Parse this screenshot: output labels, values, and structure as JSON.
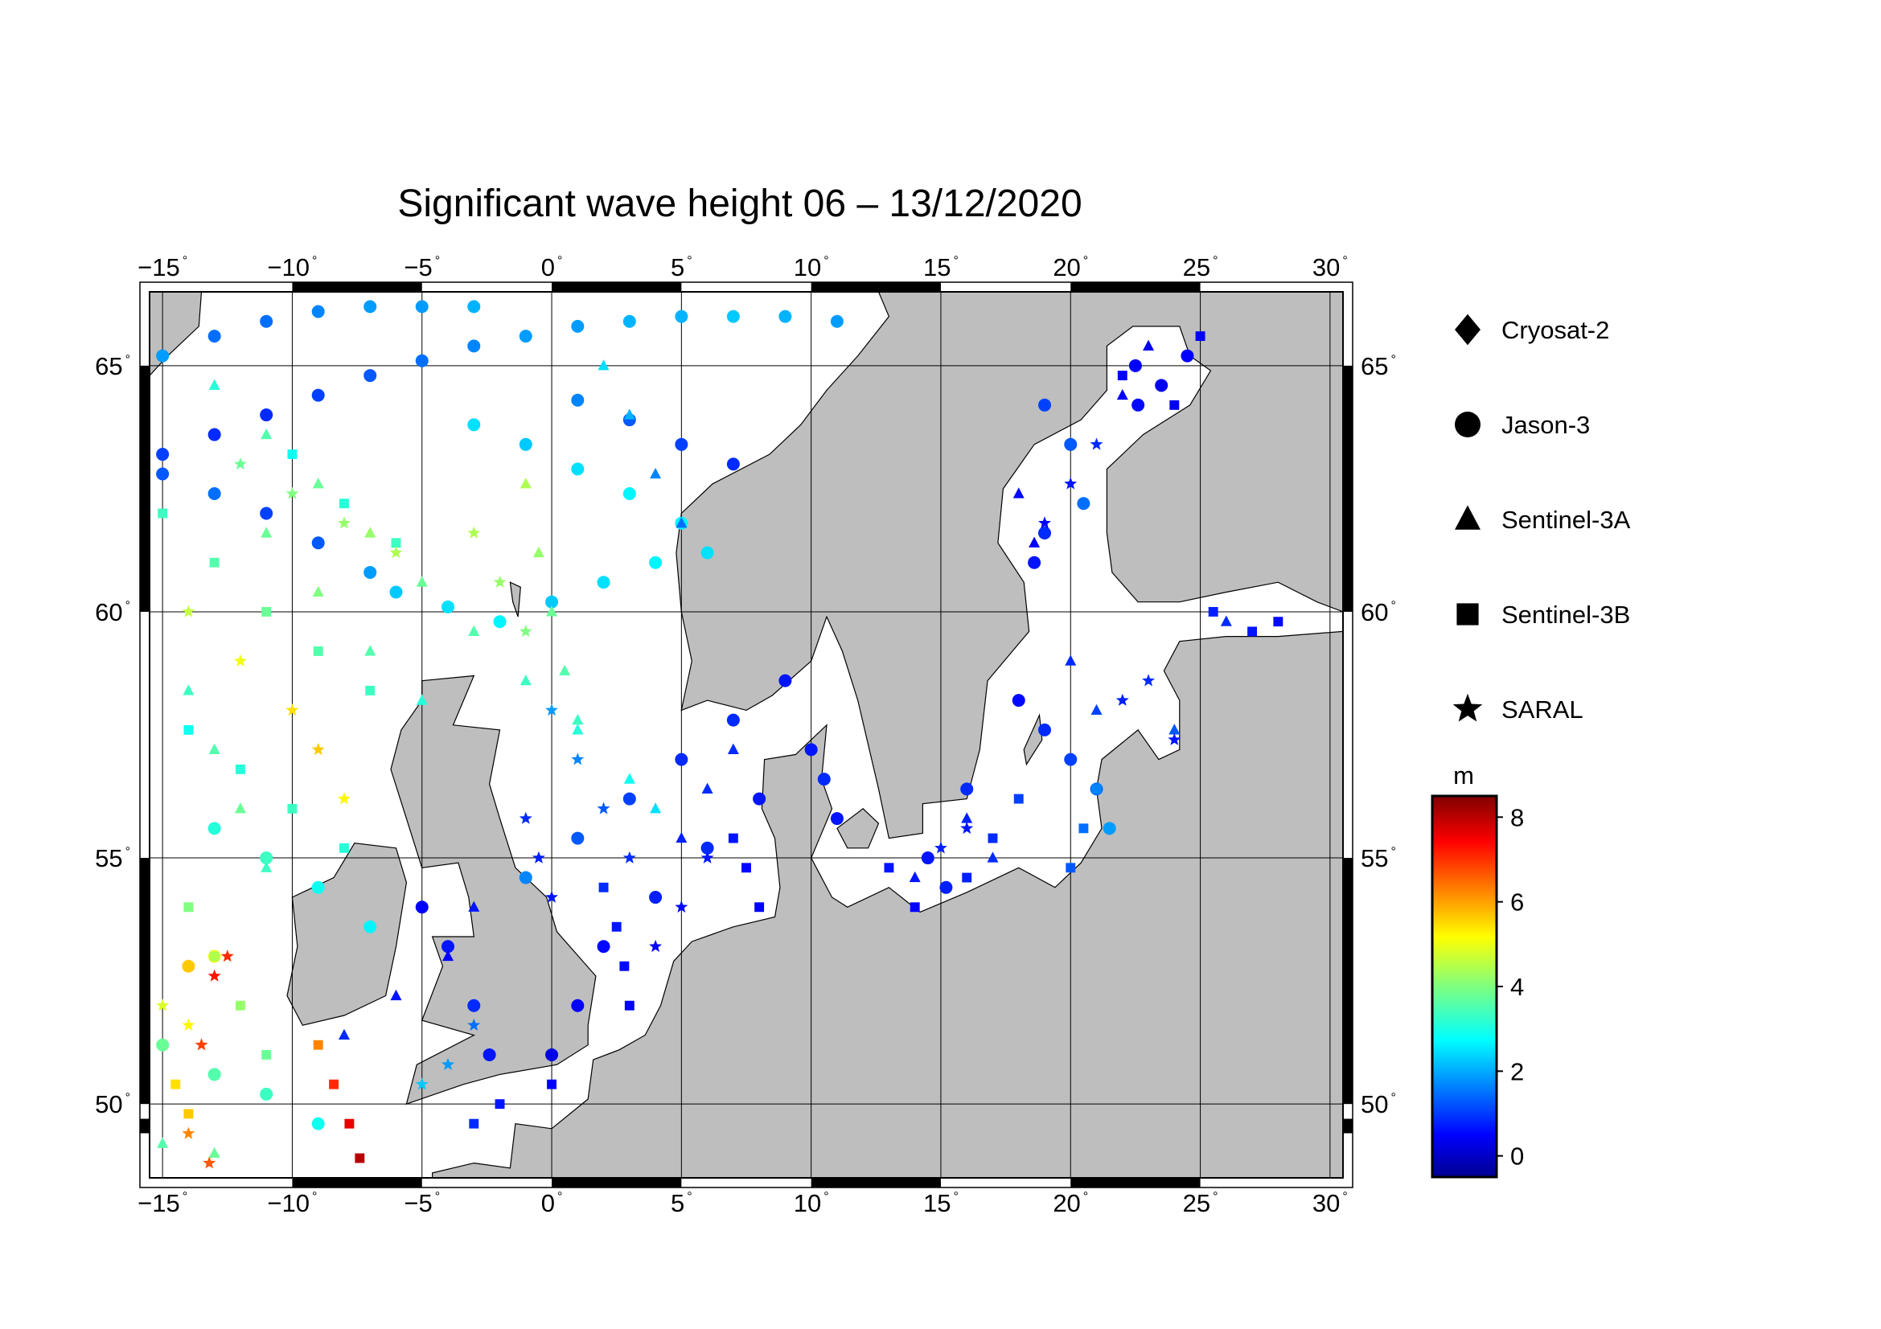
{
  "title": "Significant wave height 06 – 13/12/2020",
  "map": {
    "lon_range": [
      -15.5,
      30.5
    ],
    "lat_range": [
      48.5,
      66.5
    ],
    "lon_ticks": [
      "−15",
      "−10",
      "−5",
      "0",
      "5",
      "10",
      "15",
      "20",
      "25",
      "30"
    ],
    "lat_ticks": [
      "50",
      "55",
      "60",
      "65"
    ],
    "land_color": "#bebebe",
    "sea_color": "#ffffff",
    "gridlines": true
  },
  "legend": {
    "satellites": [
      {
        "name": "Cryosat-2",
        "marker": "diamond"
      },
      {
        "name": "Jason-3",
        "marker": "circle"
      },
      {
        "name": "Sentinel-3A",
        "marker": "triangle"
      },
      {
        "name": "Sentinel-3B",
        "marker": "square"
      },
      {
        "name": "SARAL",
        "marker": "star"
      }
    ]
  },
  "colorbar": {
    "unit": "m",
    "ticks": [
      "8",
      "6",
      "4",
      "2",
      "0"
    ],
    "range": [
      -0.5,
      8.5
    ],
    "colormap": "jet"
  },
  "chart_data": {
    "type": "scatter",
    "title": "Significant wave height 06 – 13/12/2020",
    "xlabel": "",
    "ylabel": "",
    "xlim": [
      -15.5,
      30.5
    ],
    "ylim": [
      48.5,
      66.5
    ],
    "colorbar_unit": "m",
    "colorbar_range": [
      -0.5,
      8.5
    ],
    "series": [
      {
        "name": "Jason-3",
        "marker": "circle",
        "points": [
          [
            -15,
            65.2,
            2.0
          ],
          [
            -13,
            65.6,
            1.6
          ],
          [
            -11,
            65.9,
            1.6
          ],
          [
            -9,
            66.1,
            1.8
          ],
          [
            -7,
            66.2,
            2.0
          ],
          [
            -5,
            66.2,
            2.0
          ],
          [
            -3,
            66.2,
            2.2
          ],
          [
            -15,
            63.2,
            1.2
          ],
          [
            -13,
            63.6,
            1.0
          ],
          [
            -11,
            64.0,
            1.0
          ],
          [
            -9,
            64.4,
            1.2
          ],
          [
            -7,
            64.8,
            1.4
          ],
          [
            -5,
            65.1,
            1.6
          ],
          [
            -3,
            65.4,
            1.8
          ],
          [
            -1,
            65.6,
            2.0
          ],
          [
            1,
            65.8,
            2.0
          ],
          [
            3,
            65.9,
            2.2
          ],
          [
            5,
            66.0,
            2.2
          ],
          [
            7,
            66.0,
            2.4
          ],
          [
            9,
            66.0,
            2.2
          ],
          [
            11,
            65.9,
            2.0
          ],
          [
            -15,
            62.8,
            1.4
          ],
          [
            -13,
            62.4,
            1.6
          ],
          [
            -11,
            62.0,
            1.2
          ],
          [
            -9,
            61.4,
            1.4
          ],
          [
            -7,
            60.8,
            2.0
          ],
          [
            -3,
            63.8,
            2.6
          ],
          [
            -1,
            63.4,
            2.4
          ],
          [
            1,
            62.9,
            2.6
          ],
          [
            3,
            62.4,
            2.8
          ],
          [
            5,
            61.8,
            2.8
          ],
          [
            6,
            61.2,
            2.6
          ],
          [
            1,
            64.3,
            1.8
          ],
          [
            3,
            63.9,
            1.4
          ],
          [
            5,
            63.4,
            1.2
          ],
          [
            7,
            63.0,
            1.0
          ],
          [
            0,
            60.2,
            2.4
          ],
          [
            2,
            60.6,
            2.6
          ],
          [
            4,
            61.0,
            2.8
          ],
          [
            -6,
            60.4,
            2.4
          ],
          [
            -4,
            60.1,
            2.6
          ],
          [
            -2,
            59.8,
            2.8
          ],
          [
            9,
            58.6,
            0.8
          ],
          [
            7,
            57.8,
            1.0
          ],
          [
            5,
            57.0,
            1.0
          ],
          [
            3,
            56.2,
            1.2
          ],
          [
            1,
            55.4,
            1.4
          ],
          [
            -1,
            54.6,
            1.8
          ],
          [
            10,
            57.2,
            0.8
          ],
          [
            8,
            56.2,
            0.8
          ],
          [
            6,
            55.2,
            1.0
          ],
          [
            4,
            54.2,
            0.9
          ],
          [
            2,
            53.2,
            0.7
          ],
          [
            1,
            52.0,
            0.6
          ],
          [
            0,
            51.0,
            0.4
          ],
          [
            10.5,
            56.6,
            1.0
          ],
          [
            11,
            55.8,
            0.8
          ],
          [
            -5,
            54.0,
            0.6
          ],
          [
            -4,
            53.2,
            0.8
          ],
          [
            -3,
            52.0,
            1.0
          ],
          [
            -2.4,
            51.0,
            0.8
          ],
          [
            19,
            64.2,
            1.2
          ],
          [
            20,
            63.4,
            1.4
          ],
          [
            20.5,
            62.2,
            1.6
          ],
          [
            19,
            61.6,
            1.0
          ],
          [
            18.6,
            61.0,
            0.8
          ],
          [
            22.5,
            65.0,
            0.6
          ],
          [
            23.5,
            64.6,
            0.5
          ],
          [
            24.5,
            65.2,
            0.6
          ],
          [
            22.6,
            64.2,
            0.7
          ],
          [
            18,
            58.2,
            0.7
          ],
          [
            19,
            57.6,
            1.0
          ],
          [
            20,
            57.0,
            1.2
          ],
          [
            21,
            56.4,
            1.6
          ],
          [
            21.5,
            55.6,
            2.0
          ],
          [
            16,
            56.4,
            1.0
          ],
          [
            14.5,
            55.0,
            0.8
          ],
          [
            15.2,
            54.4,
            0.9
          ],
          [
            -13,
            55.6,
            3.2
          ],
          [
            -11,
            55.0,
            3.4
          ],
          [
            -9,
            54.4,
            3.0
          ],
          [
            -7,
            53.6,
            2.8
          ],
          [
            -15,
            51.2,
            3.8
          ],
          [
            -13,
            50.6,
            3.6
          ],
          [
            -11,
            50.2,
            3.4
          ],
          [
            -9,
            49.6,
            3.0
          ],
          [
            -14,
            52.8,
            5.6
          ],
          [
            -13,
            53.0,
            5.0
          ]
        ]
      },
      {
        "name": "Sentinel-3A",
        "marker": "triangle",
        "points": [
          [
            -13,
            64.6,
            3.2
          ],
          [
            -11,
            63.6,
            3.6
          ],
          [
            -9,
            62.6,
            3.8
          ],
          [
            -7,
            61.6,
            4.2
          ],
          [
            -5,
            60.6,
            3.8
          ],
          [
            -3,
            59.6,
            3.6
          ],
          [
            -1,
            58.6,
            3.4
          ],
          [
            1,
            57.6,
            3.2
          ],
          [
            3,
            56.6,
            3.0
          ],
          [
            4,
            56.0,
            2.6
          ],
          [
            -11,
            61.6,
            3.8
          ],
          [
            -9,
            60.4,
            4.0
          ],
          [
            -7,
            59.2,
            3.6
          ],
          [
            -5,
            58.2,
            3.2
          ],
          [
            -1,
            62.6,
            4.4
          ],
          [
            -0.5,
            61.2,
            4.2
          ],
          [
            0,
            60.0,
            3.8
          ],
          [
            0.5,
            58.8,
            3.6
          ],
          [
            1,
            57.8,
            3.4
          ],
          [
            2,
            65.0,
            2.6
          ],
          [
            3,
            64.0,
            2.2
          ],
          [
            4,
            62.8,
            1.8
          ],
          [
            5,
            61.8,
            1.6
          ],
          [
            -14,
            58.4,
            3.4
          ],
          [
            -13,
            57.2,
            3.6
          ],
          [
            -12,
            56.0,
            3.8
          ],
          [
            -11,
            54.8,
            3.4
          ],
          [
            -8,
            51.4,
            1.0
          ],
          [
            -6,
            52.2,
            0.8
          ],
          [
            -4,
            53.0,
            0.6
          ],
          [
            -3,
            54.0,
            0.8
          ],
          [
            5,
            55.4,
            0.9
          ],
          [
            6,
            56.4,
            1.0
          ],
          [
            7,
            57.2,
            1.0
          ],
          [
            18,
            62.4,
            0.7
          ],
          [
            18.6,
            61.4,
            0.6
          ],
          [
            22,
            64.4,
            0.6
          ],
          [
            23,
            65.4,
            0.5
          ],
          [
            20,
            59.0,
            1.0
          ],
          [
            21,
            58.0,
            1.2
          ],
          [
            24,
            57.6,
            1.4
          ],
          [
            26,
            59.8,
            1.0
          ],
          [
            16,
            55.8,
            0.9
          ],
          [
            17,
            55.0,
            1.0
          ],
          [
            14,
            54.6,
            0.8
          ],
          [
            -15,
            49.2,
            3.6
          ],
          [
            -13,
            49.0,
            3.8
          ]
        ]
      },
      {
        "name": "Sentinel-3B",
        "marker": "square",
        "points": [
          [
            -15,
            62.0,
            3.4
          ],
          [
            -13,
            61.0,
            3.6
          ],
          [
            -11,
            60.0,
            3.8
          ],
          [
            -9,
            59.2,
            3.6
          ],
          [
            -7,
            58.4,
            3.4
          ],
          [
            -10,
            63.2,
            3.0
          ],
          [
            -8,
            62.2,
            3.2
          ],
          [
            -6,
            61.4,
            3.4
          ],
          [
            -14,
            57.6,
            3.0
          ],
          [
            -12,
            56.8,
            3.2
          ],
          [
            -10,
            56.0,
            3.4
          ],
          [
            -8,
            55.2,
            3.2
          ],
          [
            -14,
            54.0,
            4.0
          ],
          [
            -13,
            53.0,
            4.4
          ],
          [
            -12,
            52.0,
            4.2
          ],
          [
            -11,
            51.0,
            3.8
          ],
          [
            -14.5,
            50.4,
            5.4
          ],
          [
            -14,
            49.8,
            5.6
          ],
          [
            -9,
            51.2,
            6.2
          ],
          [
            -8.4,
            50.4,
            7.0
          ],
          [
            -7.8,
            49.6,
            7.6
          ],
          [
            -7.4,
            48.9,
            8.0
          ],
          [
            3,
            52.0,
            0.6
          ],
          [
            2.8,
            52.8,
            0.7
          ],
          [
            2.5,
            53.6,
            0.8
          ],
          [
            2,
            54.4,
            1.0
          ],
          [
            7,
            55.4,
            0.8
          ],
          [
            7.5,
            54.8,
            0.7
          ],
          [
            8,
            54.0,
            0.6
          ],
          [
            13,
            54.8,
            0.8
          ],
          [
            14,
            54.0,
            0.6
          ],
          [
            16,
            54.6,
            0.9
          ],
          [
            17,
            55.4,
            1.0
          ],
          [
            18,
            56.2,
            1.2
          ],
          [
            20,
            54.8,
            1.4
          ],
          [
            20.5,
            55.6,
            1.6
          ],
          [
            21,
            56.4,
            1.8
          ],
          [
            27,
            59.6,
            0.8
          ],
          [
            28,
            59.8,
            0.7
          ],
          [
            25.5,
            60.0,
            0.9
          ],
          [
            22,
            64.8,
            0.6
          ],
          [
            24,
            64.2,
            0.5
          ],
          [
            25,
            65.6,
            0.6
          ],
          [
            -3,
            49.6,
            1.0
          ],
          [
            -2,
            50.0,
            0.8
          ],
          [
            0,
            50.4,
            0.6
          ]
        ]
      },
      {
        "name": "SARAL",
        "marker": "star",
        "points": [
          [
            -12,
            63.0,
            3.8
          ],
          [
            -10,
            62.4,
            4.0
          ],
          [
            -8,
            61.8,
            4.2
          ],
          [
            -6,
            61.2,
            4.4
          ],
          [
            -14,
            60.0,
            4.6
          ],
          [
            -12,
            59.0,
            5.0
          ],
          [
            -10,
            58.0,
            5.4
          ],
          [
            -9,
            57.2,
            5.6
          ],
          [
            -8,
            56.2,
            5.2
          ],
          [
            -3,
            61.6,
            4.4
          ],
          [
            -2,
            60.6,
            4.2
          ],
          [
            -1,
            59.6,
            4.0
          ],
          [
            0,
            58.0,
            2.0
          ],
          [
            1,
            57.0,
            1.8
          ],
          [
            2,
            56.0,
            1.4
          ],
          [
            3,
            55.0,
            1.0
          ],
          [
            -1,
            55.8,
            1.0
          ],
          [
            -0.5,
            55.0,
            0.9
          ],
          [
            0,
            54.2,
            0.8
          ],
          [
            -15,
            52.0,
            4.8
          ],
          [
            -14,
            51.6,
            5.2
          ],
          [
            -13.5,
            51.2,
            6.8
          ],
          [
            -13,
            52.6,
            7.2
          ],
          [
            -12.5,
            53.0,
            7.0
          ],
          [
            -14,
            49.4,
            6.2
          ],
          [
            -13.2,
            48.8,
            6.6
          ],
          [
            -5,
            50.4,
            2.4
          ],
          [
            -4,
            50.8,
            2.0
          ],
          [
            -3,
            51.6,
            1.6
          ],
          [
            4,
            53.2,
            0.6
          ],
          [
            5,
            54.0,
            0.7
          ],
          [
            6,
            55.0,
            0.8
          ],
          [
            19,
            61.8,
            0.6
          ],
          [
            20,
            62.6,
            0.8
          ],
          [
            21,
            63.4,
            1.0
          ],
          [
            22,
            58.2,
            0.9
          ],
          [
            23,
            58.6,
            1.0
          ],
          [
            24,
            57.4,
            0.8
          ],
          [
            15,
            55.2,
            0.9
          ],
          [
            16,
            55.6,
            0.8
          ]
        ]
      }
    ]
  }
}
